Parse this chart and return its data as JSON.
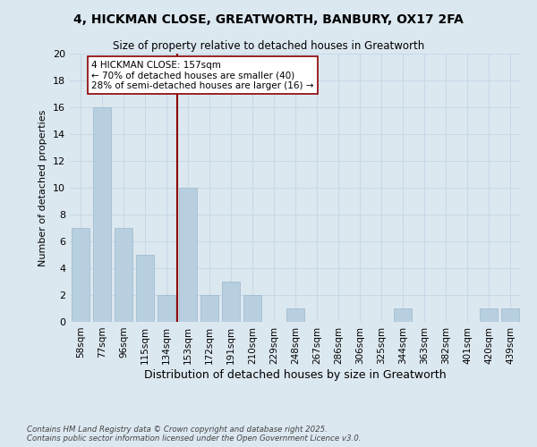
{
  "title": "4, HICKMAN CLOSE, GREATWORTH, BANBURY, OX17 2FA",
  "subtitle": "Size of property relative to detached houses in Greatworth",
  "xlabel": "Distribution of detached houses by size in Greatworth",
  "ylabel": "Number of detached properties",
  "categories": [
    "58sqm",
    "77sqm",
    "96sqm",
    "115sqm",
    "134sqm",
    "153sqm",
    "172sqm",
    "191sqm",
    "210sqm",
    "229sqm",
    "248sqm",
    "267sqm",
    "286sqm",
    "306sqm",
    "325sqm",
    "344sqm",
    "363sqm",
    "382sqm",
    "401sqm",
    "420sqm",
    "439sqm"
  ],
  "values": [
    7,
    16,
    7,
    5,
    2,
    10,
    2,
    3,
    2,
    0,
    1,
    0,
    0,
    0,
    0,
    1,
    0,
    0,
    0,
    1,
    1
  ],
  "bar_color": "#b8cfe0",
  "bar_edge_color": "#9ab8cc",
  "vline_x": 4.5,
  "vline_color": "#8b0000",
  "annotation_text": "4 HICKMAN CLOSE: 157sqm\n← 70% of detached houses are smaller (40)\n28% of semi-detached houses are larger (16) →",
  "annotation_box_color": "#ffffff",
  "annotation_box_edge": "#8b0000",
  "ylim": [
    0,
    20
  ],
  "yticks": [
    0,
    2,
    4,
    6,
    8,
    10,
    12,
    14,
    16,
    18,
    20
  ],
  "grid_color": "#c8d8e8",
  "background_color": "#dce8f0",
  "footer": "Contains HM Land Registry data © Crown copyright and database right 2025.\nContains public sector information licensed under the Open Government Licence v3.0."
}
